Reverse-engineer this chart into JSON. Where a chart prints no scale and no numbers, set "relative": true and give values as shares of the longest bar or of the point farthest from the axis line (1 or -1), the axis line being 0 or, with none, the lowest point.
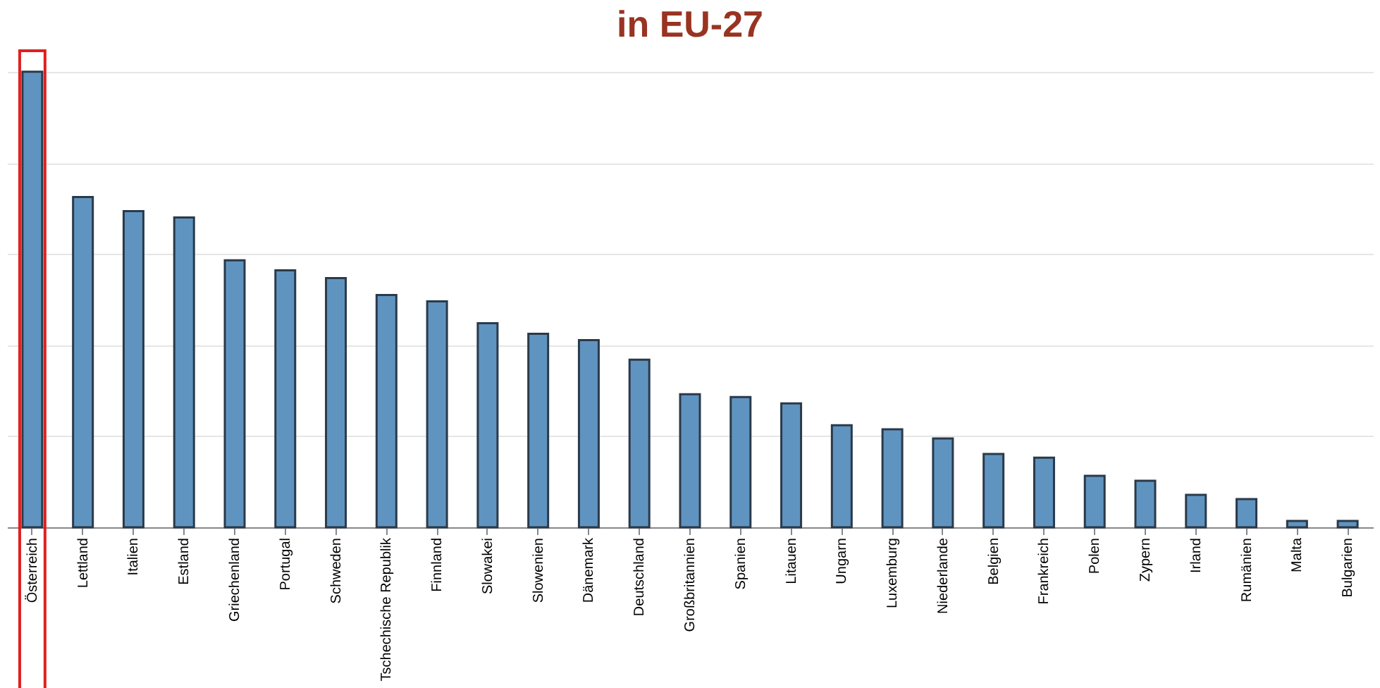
{
  "chart_data": {
    "type": "bar",
    "title": "in EU-27",
    "relative": true,
    "grid": "y",
    "color": "#6094c0",
    "categories": [
      "Österreich",
      "Lettland",
      "Italien",
      "Estland",
      "Griechenland",
      "Portugal",
      "Schweden",
      "Tschechische Republik",
      "Finnland",
      "Slowakei",
      "Slowenien",
      "Dänemark",
      "Deutschland",
      "Großbritannien",
      "Spanien",
      "Litauen",
      "Ungarn",
      "Luxemburg",
      "Niederlande",
      "Belgien",
      "Frankreich",
      "Polen",
      "Zypern",
      "Irland",
      "Rumänien",
      "Malta",
      "Bulgarien"
    ],
    "values": [
      1,
      0.725,
      0.694,
      0.68,
      0.586,
      0.564,
      0.547,
      0.51,
      0.496,
      0.448,
      0.425,
      0.411,
      0.368,
      0.292,
      0.286,
      0.272,
      0.224,
      0.215,
      0.195,
      0.161,
      0.153,
      0.113,
      0.102,
      0.071,
      0.062,
      0.014,
      0.014
    ]
  }
}
